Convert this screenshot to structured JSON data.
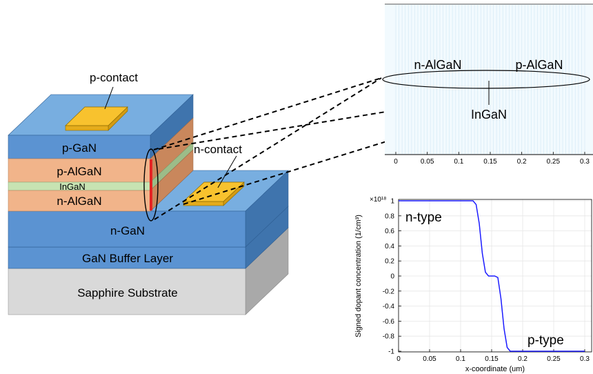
{
  "device": {
    "layers": {
      "p_gan": "p-GaN",
      "p_algan": "p-AlGaN",
      "ingan": "InGaN",
      "n_algan": "n-AlGaN",
      "n_gan": "n-GaN",
      "buffer": "GaN Buffer Layer",
      "substrate": "Sapphire Substrate"
    },
    "contacts": {
      "p_contact": "p-contact",
      "n_contact": "n-contact"
    },
    "colors": {
      "gan_front": "#5b93d2",
      "gan_top": "#78aee0",
      "gan_side": "#3f74ad",
      "algan_front": "#f1b48a",
      "algan_side": "#c9875c",
      "ingan_front": "#c7e3b2",
      "ingan_side": "#9cbc88",
      "substrate_front": "#d9d9d9",
      "substrate_side": "#a9a9a9",
      "contact": "#f8c22e",
      "highlight_bar": "#e52222"
    }
  },
  "zoom_panel": {
    "labels": {
      "n_algan": "n-AlGaN",
      "p_algan": "p-AlGaN",
      "ingan": "InGaN"
    },
    "x_ticks": [
      "0",
      "0.05",
      "0.1",
      "0.15",
      "0.2",
      "0.25",
      "0.3"
    ]
  },
  "chart_data": {
    "type": "line",
    "xlabel": "x-coordinate (um)",
    "ylabel": "Signed dopant concentration (1/cm³)",
    "y_multiplier": "×10¹⁸",
    "xlim": [
      0,
      0.3
    ],
    "ylim": [
      -1,
      1
    ],
    "x_ticks": [
      "0",
      "0.05",
      "0.1",
      "0.15",
      "0.2",
      "0.25",
      "0.3"
    ],
    "y_ticks": [
      "1",
      "0.8",
      "0.6",
      "0.4",
      "0.2",
      "0",
      "-0.2",
      "-0.4",
      "-0.6",
      "-0.8",
      "-1"
    ],
    "annotations": [
      "n-type",
      "p-type"
    ],
    "grid": true,
    "series": [
      {
        "color": "#1a1aff",
        "x": [
          0,
          0.12,
          0.125,
          0.13,
          0.135,
          0.14,
          0.145,
          0.15,
          0.155,
          0.16,
          0.165,
          0.17,
          0.175,
          0.18,
          0.3
        ],
        "y": [
          1,
          1,
          0.95,
          0.7,
          0.3,
          0.05,
          0,
          0,
          0,
          -0.02,
          -0.3,
          -0.7,
          -0.95,
          -1,
          -1
        ]
      }
    ]
  }
}
